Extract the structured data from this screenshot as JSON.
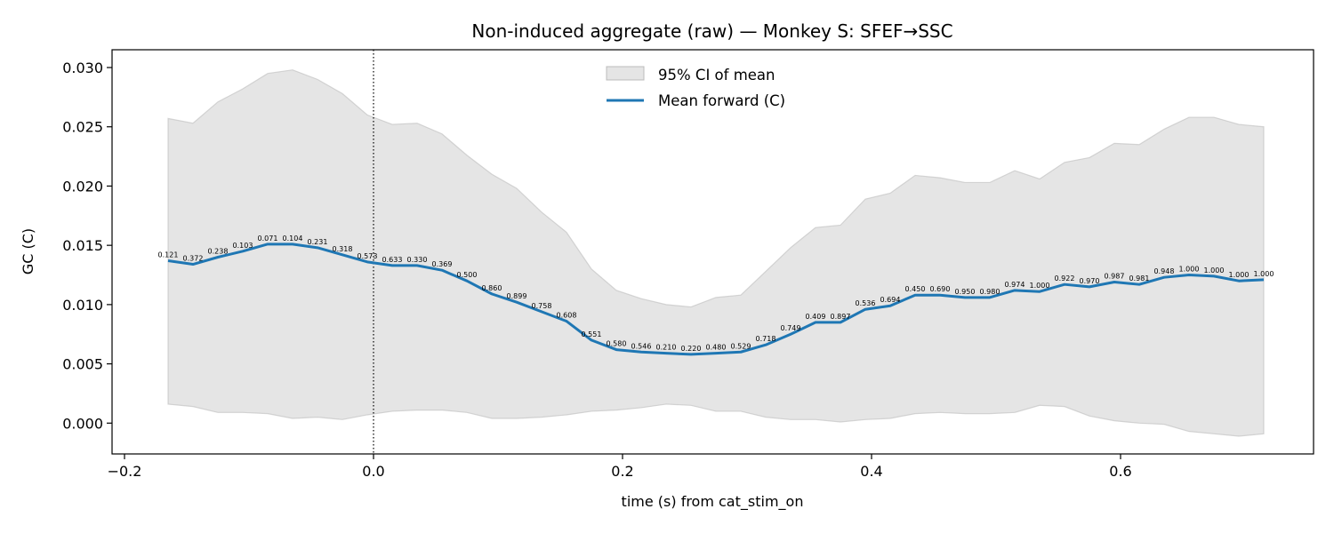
{
  "chart_data": {
    "type": "line",
    "title": "Non-induced aggregate (raw) — Monkey S: SFEF→SSC",
    "xlabel": "time (s) from cat_stim_on",
    "ylabel": "GC (C)",
    "xlim": [
      -0.21,
      0.755
    ],
    "ylim": [
      -0.0026,
      0.0315
    ],
    "xticks": [
      -0.2,
      0.0,
      0.2,
      0.4,
      0.6
    ],
    "xtick_labels": [
      "−0.2",
      "0.0",
      "0.2",
      "0.4",
      "0.6"
    ],
    "yticks": [
      0.0,
      0.005,
      0.01,
      0.015,
      0.02,
      0.025,
      0.03
    ],
    "ytick_labels": [
      "0.000",
      "0.005",
      "0.010",
      "0.015",
      "0.020",
      "0.025",
      "0.030"
    ],
    "vline_x": 0.0,
    "grid": false,
    "legend_position": "upper-center",
    "series": [
      {
        "name": "95% CI of mean",
        "kind": "band",
        "color": "#d3d3d3",
        "x": [
          -0.165,
          -0.145,
          -0.125,
          -0.105,
          -0.085,
          -0.065,
          -0.045,
          -0.025,
          -0.005,
          0.015,
          0.035,
          0.055,
          0.075,
          0.095,
          0.115,
          0.135,
          0.155,
          0.175,
          0.195,
          0.215,
          0.235,
          0.255,
          0.275,
          0.295,
          0.315,
          0.335,
          0.355,
          0.375,
          0.395,
          0.415,
          0.435,
          0.455,
          0.475,
          0.495,
          0.515,
          0.535,
          0.555,
          0.575,
          0.595,
          0.615,
          0.635,
          0.655,
          0.675,
          0.695,
          0.715
        ],
        "lower": [
          0.0016,
          0.0014,
          0.0009,
          0.0009,
          0.0008,
          0.0004,
          0.0005,
          0.0003,
          0.0007,
          0.001,
          0.0011,
          0.0011,
          0.0009,
          0.0004,
          0.0004,
          0.0005,
          0.0007,
          0.001,
          0.0011,
          0.0013,
          0.0016,
          0.0015,
          0.001,
          0.001,
          0.0005,
          0.0003,
          0.0003,
          0.0001,
          0.0003,
          0.0004,
          0.0008,
          0.0009,
          0.0008,
          0.0008,
          0.0009,
          0.0015,
          0.0014,
          0.0006,
          0.0002,
          0.0,
          -0.0001,
          -0.0007,
          -0.0009,
          -0.0011,
          -0.0009
        ],
        "upper": [
          0.0257,
          0.0253,
          0.0271,
          0.0282,
          0.0295,
          0.0298,
          0.029,
          0.0278,
          0.026,
          0.0252,
          0.0253,
          0.0244,
          0.0226,
          0.021,
          0.0198,
          0.0178,
          0.0161,
          0.013,
          0.0112,
          0.0105,
          0.01,
          0.0098,
          0.0106,
          0.0108,
          0.0128,
          0.0148,
          0.0165,
          0.0167,
          0.0189,
          0.0194,
          0.0209,
          0.0207,
          0.0203,
          0.0203,
          0.0213,
          0.0206,
          0.022,
          0.0224,
          0.0236,
          0.0235,
          0.0248,
          0.0258,
          0.0258,
          0.0252,
          0.025
        ]
      },
      {
        "name": "Mean forward (C)",
        "kind": "line",
        "color": "#1f77b4",
        "x": [
          -0.165,
          -0.145,
          -0.125,
          -0.105,
          -0.085,
          -0.065,
          -0.045,
          -0.025,
          -0.005,
          0.015,
          0.035,
          0.055,
          0.075,
          0.095,
          0.115,
          0.135,
          0.155,
          0.175,
          0.195,
          0.215,
          0.235,
          0.255,
          0.275,
          0.295,
          0.315,
          0.335,
          0.355,
          0.375,
          0.395,
          0.415,
          0.435,
          0.455,
          0.475,
          0.495,
          0.515,
          0.535,
          0.555,
          0.575,
          0.595,
          0.615,
          0.635,
          0.655,
          0.675,
          0.695,
          0.715
        ],
        "y": [
          0.0137,
          0.0134,
          0.014,
          0.0145,
          0.0151,
          0.0151,
          0.0148,
          0.0142,
          0.0136,
          0.0133,
          0.0133,
          0.0129,
          0.012,
          0.0109,
          0.0102,
          0.0094,
          0.0086,
          0.007,
          0.0062,
          0.006,
          0.0059,
          0.0058,
          0.0059,
          0.006,
          0.0066,
          0.0075,
          0.0085,
          0.0085,
          0.0096,
          0.0099,
          0.0108,
          0.0108,
          0.0106,
          0.0106,
          0.0112,
          0.0111,
          0.0117,
          0.0115,
          0.0119,
          0.0117,
          0.0123,
          0.0125,
          0.0124,
          0.012,
          0.0121
        ],
        "point_labels": [
          "0.121",
          "0.372",
          "0.238",
          "0.103",
          "0.071",
          "0.104",
          "0.231",
          "0.318",
          "0.573",
          "0.633",
          "0.330",
          "0.369",
          "0.500",
          "0.860",
          "0.899",
          "0.758",
          "0.608",
          "0.551",
          "0.580",
          "0.546",
          "0.210",
          "0.220",
          "0.480",
          "0.529",
          "0.718",
          "0.749",
          "0.409",
          "0.897",
          "0.536",
          "0.694",
          "0.450",
          "0.690",
          "0.950",
          "0.980",
          "0.974",
          "1.000",
          "0.922",
          "0.970",
          "0.987",
          "0.981",
          "0.948",
          "1.000",
          "1.000",
          "1.000",
          "1.000"
        ]
      }
    ]
  }
}
